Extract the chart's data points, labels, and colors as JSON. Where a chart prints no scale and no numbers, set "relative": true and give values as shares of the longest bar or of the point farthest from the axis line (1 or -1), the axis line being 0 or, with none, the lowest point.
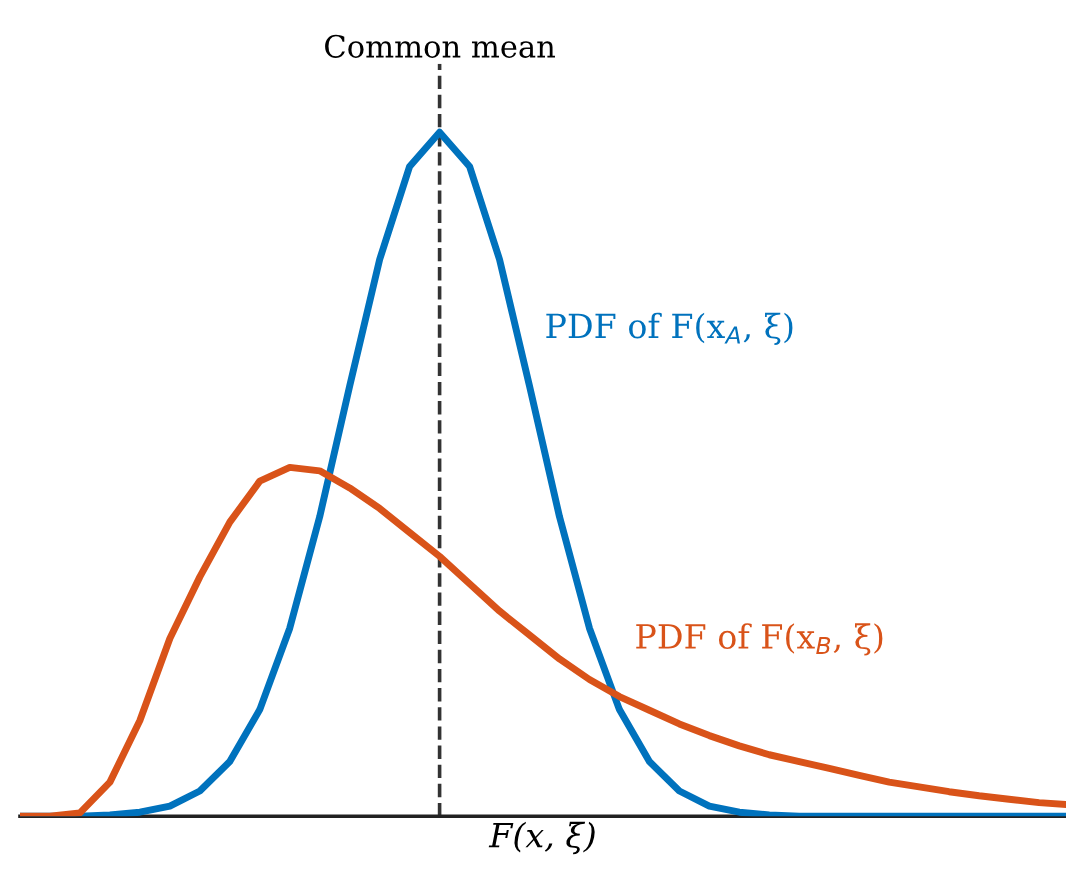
{
  "chart_data": {
    "type": "line",
    "relative": true,
    "xlabel": "F(x, ξ)",
    "categories": [
      null,
      null,
      null,
      null,
      null,
      null,
      null,
      null,
      null,
      null,
      null,
      null,
      null,
      null,
      null,
      null,
      null,
      null,
      null,
      null,
      null,
      null,
      null,
      null,
      null,
      null,
      null,
      null,
      null,
      null,
      null,
      null,
      null,
      null,
      null,
      null
    ],
    "series": [
      {
        "name": "PDF of F(x$_{A}$, ξ)",
        "color": "#0072bd",
        "values": [
          0,
          0,
          0,
          0.002,
          0.006,
          0.015,
          0.037,
          0.08,
          0.156,
          0.275,
          0.438,
          0.629,
          0.814,
          0.95,
          1,
          0.95,
          0.814,
          0.629,
          0.438,
          0.275,
          0.156,
          0.08,
          0.037,
          0.015,
          0.006,
          0.002,
          0,
          0,
          0,
          0,
          0,
          0,
          0,
          0,
          0,
          0
        ]
      },
      {
        "name": "PDF of F(x$_{B}$, ξ)",
        "color": "#d95319",
        "values": [
          0,
          0,
          0.005,
          0.05,
          0.14,
          0.26,
          0.35,
          0.43,
          0.49,
          0.51,
          0.505,
          0.48,
          0.45,
          0.415,
          0.38,
          0.34,
          0.3,
          0.265,
          0.23,
          0.2,
          0.175,
          0.155,
          0.135,
          0.118,
          0.103,
          0.09,
          0.08,
          0.07,
          0.06,
          0.05,
          0.043,
          0.036,
          0.03,
          0.025,
          0.02,
          0.017
        ]
      }
    ],
    "annotations": [
      "Common mean"
    ],
    "legend": false,
    "line_style": "solid",
    "marker": "none"
  }
}
